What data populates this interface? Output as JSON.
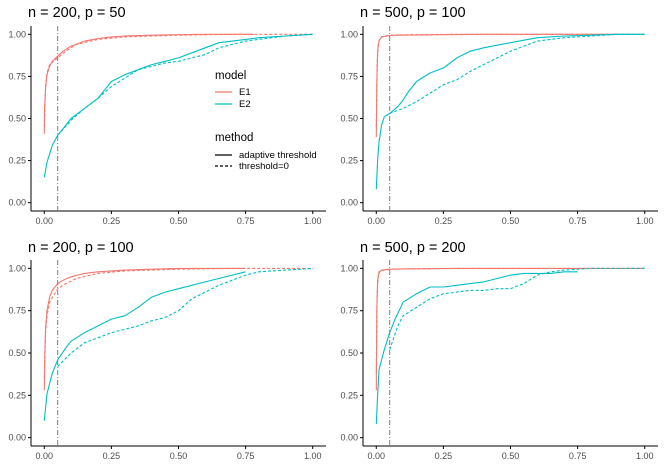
{
  "chart_data": [
    {
      "type": "line",
      "title": "n = 200, p = 50",
      "xlabel": "",
      "ylabel": "",
      "xlim": [
        0,
        1
      ],
      "ylim": [
        0,
        1
      ],
      "x_ticks": [
        "0.00",
        "0.25",
        "0.50",
        "0.75",
        "1.00"
      ],
      "y_ticks": [
        "0.00",
        "0.25",
        "0.50",
        "0.75",
        "1.00"
      ],
      "vline_x": 0.05,
      "series": [
        {
          "name": "E1, adaptive threshold",
          "model": "E1",
          "method": "adaptive threshold",
          "x": [
            0,
            0.001,
            0.005,
            0.01,
            0.02,
            0.03,
            0.05,
            0.07,
            0.1,
            0.15,
            0.2,
            0.25,
            0.3,
            0.4,
            0.5,
            0.6,
            0.7,
            0.78
          ],
          "y": [
            0.41,
            0.55,
            0.68,
            0.76,
            0.81,
            0.84,
            0.87,
            0.9,
            0.93,
            0.96,
            0.975,
            0.985,
            0.99,
            0.995,
            0.998,
            1.0,
            1.0,
            1.0
          ]
        },
        {
          "name": "E1, threshold=0",
          "model": "E1",
          "method": "threshold=0",
          "x": [
            0,
            0.005,
            0.01,
            0.02,
            0.05,
            0.08,
            0.12,
            0.2,
            0.3,
            0.5,
            0.7,
            0.8,
            1.0
          ],
          "y": [
            0.45,
            0.7,
            0.77,
            0.82,
            0.86,
            0.9,
            0.94,
            0.97,
            0.985,
            0.995,
            1.0,
            1.0,
            1.0
          ]
        },
        {
          "name": "E2, adaptive threshold",
          "model": "E2",
          "method": "adaptive threshold",
          "x": [
            0,
            0.01,
            0.03,
            0.05,
            0.08,
            0.1,
            0.15,
            0.2,
            0.25,
            0.3,
            0.35,
            0.4,
            0.45,
            0.5,
            0.55,
            0.6,
            0.65,
            0.7,
            0.75,
            0.8,
            0.9,
            1.0
          ],
          "y": [
            0.15,
            0.24,
            0.34,
            0.4,
            0.46,
            0.5,
            0.56,
            0.62,
            0.72,
            0.76,
            0.79,
            0.82,
            0.84,
            0.86,
            0.89,
            0.92,
            0.95,
            0.96,
            0.97,
            0.98,
            0.99,
            1.0
          ]
        },
        {
          "name": "E2, threshold=0",
          "model": "E2",
          "method": "threshold=0",
          "x": [
            0.05,
            0.1,
            0.15,
            0.2,
            0.25,
            0.3,
            0.35,
            0.4,
            0.45,
            0.5,
            0.55,
            0.6,
            0.65,
            0.7,
            0.75,
            0.8,
            0.9,
            1.0
          ],
          "y": [
            0.4,
            0.49,
            0.56,
            0.62,
            0.69,
            0.74,
            0.79,
            0.81,
            0.83,
            0.84,
            0.86,
            0.88,
            0.92,
            0.94,
            0.96,
            0.97,
            0.99,
            1.0
          ]
        }
      ]
    },
    {
      "type": "line",
      "title": "n = 500, p = 100",
      "xlabel": "",
      "ylabel": "",
      "xlim": [
        0,
        1
      ],
      "ylim": [
        0,
        1
      ],
      "x_ticks": [
        "0.00",
        "0.25",
        "0.50",
        "0.75",
        "1.00"
      ],
      "y_ticks": [
        "0.00",
        "0.25",
        "0.50",
        "0.75",
        "1.00"
      ],
      "vline_x": 0.05,
      "series": [
        {
          "name": "E1, adaptive threshold",
          "model": "E1",
          "method": "adaptive threshold",
          "x": [
            0,
            0.002,
            0.005,
            0.01,
            0.02,
            0.04,
            0.06,
            0.1,
            0.2,
            0.4,
            0.6,
            0.8,
            0.9
          ],
          "y": [
            0.39,
            0.7,
            0.9,
            0.96,
            0.985,
            0.99,
            0.995,
            0.995,
            0.997,
            1.0,
            1.0,
            1.0,
            1.0
          ]
        },
        {
          "name": "E1, threshold=0",
          "model": "E1",
          "method": "threshold=0",
          "x": [
            0,
            0.003,
            0.008,
            0.015,
            0.03,
            0.06,
            0.1,
            0.3,
            0.6,
            1.0
          ],
          "y": [
            0.45,
            0.82,
            0.95,
            0.98,
            0.99,
            0.995,
            0.997,
            1.0,
            1.0,
            1.0
          ]
        },
        {
          "name": "E2, adaptive threshold",
          "model": "E2",
          "method": "adaptive threshold",
          "x": [
            0,
            0.005,
            0.01,
            0.02,
            0.03,
            0.05,
            0.08,
            0.1,
            0.12,
            0.15,
            0.2,
            0.25,
            0.3,
            0.35,
            0.4,
            0.5,
            0.6,
            0.7,
            0.8,
            0.9,
            1.0
          ],
          "y": [
            0.08,
            0.25,
            0.36,
            0.46,
            0.51,
            0.53,
            0.57,
            0.61,
            0.66,
            0.72,
            0.77,
            0.8,
            0.86,
            0.9,
            0.92,
            0.95,
            0.98,
            0.99,
            0.995,
            1.0,
            1.0
          ]
        },
        {
          "name": "E2, threshold=0",
          "model": "E2",
          "method": "threshold=0",
          "x": [
            0.05,
            0.1,
            0.15,
            0.2,
            0.25,
            0.3,
            0.35,
            0.4,
            0.45,
            0.5,
            0.55,
            0.6,
            0.65,
            0.7,
            0.8,
            0.9,
            1.0
          ],
          "y": [
            0.53,
            0.56,
            0.6,
            0.65,
            0.7,
            0.73,
            0.78,
            0.82,
            0.86,
            0.9,
            0.93,
            0.96,
            0.97,
            0.98,
            0.99,
            1.0,
            1.0
          ]
        }
      ]
    },
    {
      "type": "line",
      "title": "n = 200, p = 100",
      "xlabel": "",
      "ylabel": "",
      "xlim": [
        0,
        1
      ],
      "ylim": [
        0,
        1
      ],
      "x_ticks": [
        "0.00",
        "0.25",
        "0.50",
        "0.75",
        "1.00"
      ],
      "y_ticks": [
        "0.00",
        "0.25",
        "0.50",
        "0.75",
        "1.00"
      ],
      "vline_x": 0.05,
      "series": [
        {
          "name": "E1, adaptive threshold",
          "model": "E1",
          "method": "adaptive threshold",
          "x": [
            0,
            0.002,
            0.005,
            0.01,
            0.02,
            0.03,
            0.05,
            0.07,
            0.1,
            0.15,
            0.2,
            0.3,
            0.4,
            0.5,
            0.6,
            0.7,
            0.75
          ],
          "y": [
            0.28,
            0.5,
            0.65,
            0.75,
            0.83,
            0.87,
            0.91,
            0.93,
            0.95,
            0.97,
            0.98,
            0.99,
            0.995,
            1.0,
            1.0,
            1.0,
            1.0
          ]
        },
        {
          "name": "E1, threshold=0",
          "model": "E1",
          "method": "threshold=0",
          "x": [
            0,
            0.005,
            0.01,
            0.02,
            0.05,
            0.08,
            0.12,
            0.2,
            0.3,
            0.5,
            0.7,
            0.8,
            1.0
          ],
          "y": [
            0.35,
            0.62,
            0.72,
            0.8,
            0.88,
            0.91,
            0.94,
            0.97,
            0.985,
            0.995,
            1.0,
            1.0,
            1.0
          ]
        },
        {
          "name": "E2, adaptive threshold",
          "model": "E2",
          "method": "adaptive threshold",
          "x": [
            0,
            0.01,
            0.03,
            0.05,
            0.08,
            0.1,
            0.15,
            0.2,
            0.25,
            0.3,
            0.35,
            0.4,
            0.45,
            0.5,
            0.55,
            0.6,
            0.65,
            0.7,
            0.75
          ],
          "y": [
            0.1,
            0.26,
            0.38,
            0.46,
            0.53,
            0.57,
            0.62,
            0.66,
            0.7,
            0.72,
            0.77,
            0.83,
            0.86,
            0.88,
            0.9,
            0.92,
            0.94,
            0.96,
            0.98
          ]
        },
        {
          "name": "E2, threshold=0",
          "model": "E2",
          "method": "threshold=0",
          "x": [
            0.05,
            0.1,
            0.15,
            0.2,
            0.25,
            0.3,
            0.35,
            0.4,
            0.45,
            0.5,
            0.55,
            0.6,
            0.65,
            0.7,
            0.75,
            0.8,
            0.9,
            1.0
          ],
          "y": [
            0.42,
            0.5,
            0.56,
            0.59,
            0.62,
            0.64,
            0.66,
            0.69,
            0.71,
            0.75,
            0.82,
            0.86,
            0.9,
            0.93,
            0.96,
            0.98,
            0.99,
            1.0
          ]
        }
      ]
    },
    {
      "type": "line",
      "title": "n = 500, p = 200",
      "xlabel": "",
      "ylabel": "",
      "xlim": [
        0,
        1
      ],
      "ylim": [
        0,
        1
      ],
      "x_ticks": [
        "0.00",
        "0.25",
        "0.50",
        "0.75",
        "1.00"
      ],
      "y_ticks": [
        "0.00",
        "0.25",
        "0.50",
        "0.75",
        "1.00"
      ],
      "vline_x": 0.05,
      "series": [
        {
          "name": "E1, adaptive threshold",
          "model": "E1",
          "method": "adaptive threshold",
          "x": [
            0,
            0.002,
            0.005,
            0.01,
            0.02,
            0.05,
            0.1,
            0.3,
            0.6,
            0.8,
            1.0
          ],
          "y": [
            0.28,
            0.75,
            0.93,
            0.98,
            0.99,
            0.995,
            0.997,
            1.0,
            1.0,
            1.0,
            1.0
          ]
        },
        {
          "name": "E1, threshold=0",
          "model": "E1",
          "method": "threshold=0",
          "x": [
            0,
            0.003,
            0.008,
            0.015,
            0.03,
            0.06,
            0.1,
            0.3,
            0.6,
            1.0
          ],
          "y": [
            0.38,
            0.85,
            0.96,
            0.985,
            0.99,
            0.995,
            0.997,
            1.0,
            1.0,
            1.0
          ]
        },
        {
          "name": "E2, adaptive threshold",
          "model": "E2",
          "method": "adaptive threshold",
          "x": [
            0,
            0.005,
            0.01,
            0.02,
            0.03,
            0.05,
            0.07,
            0.1,
            0.15,
            0.2,
            0.25,
            0.3,
            0.35,
            0.4,
            0.45,
            0.5,
            0.55,
            0.6,
            0.65,
            0.7,
            0.75
          ],
          "y": [
            0.08,
            0.25,
            0.4,
            0.46,
            0.52,
            0.62,
            0.7,
            0.8,
            0.85,
            0.89,
            0.89,
            0.9,
            0.91,
            0.92,
            0.94,
            0.96,
            0.97,
            0.97,
            0.97,
            0.98,
            0.98
          ]
        },
        {
          "name": "E2, threshold=0",
          "model": "E2",
          "method": "threshold=0",
          "x": [
            0.05,
            0.08,
            0.1,
            0.15,
            0.2,
            0.25,
            0.3,
            0.35,
            0.4,
            0.45,
            0.5,
            0.55,
            0.6,
            0.65,
            0.7,
            0.8,
            0.9,
            1.0
          ],
          "y": [
            0.52,
            0.66,
            0.72,
            0.77,
            0.82,
            0.85,
            0.86,
            0.87,
            0.87,
            0.88,
            0.88,
            0.91,
            0.96,
            0.98,
            0.99,
            1.0,
            1.0,
            1.0
          ]
        }
      ]
    }
  ],
  "legend": {
    "model_title": "model",
    "model_items": [
      {
        "label": "E1",
        "color": "#F8766D"
      },
      {
        "label": "E2",
        "color": "#00BFC4"
      }
    ],
    "method_title": "method",
    "method_items": [
      {
        "label": "adaptive threshold",
        "linetype": "solid"
      },
      {
        "label": "threshold=0",
        "linetype": "dashed"
      }
    ]
  },
  "colors": {
    "E1": "#F8766D",
    "E2": "#00BFC4",
    "vline": "#7f7f7f",
    "axis": "#000000",
    "tick_text": "#4d4d4d"
  }
}
